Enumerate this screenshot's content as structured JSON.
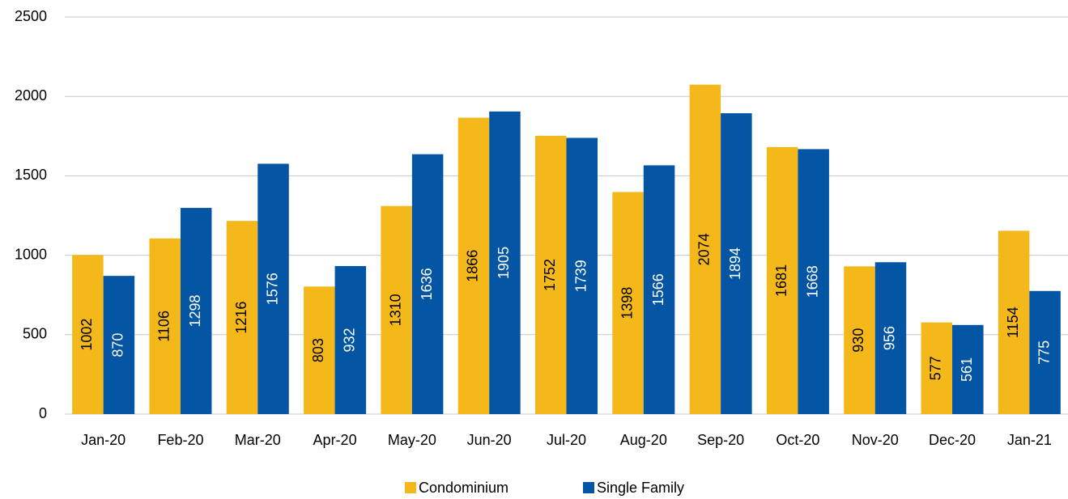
{
  "chart_data": {
    "type": "bar",
    "categories": [
      "Jan-20",
      "Feb-20",
      "Mar-20",
      "Apr-20",
      "May-20",
      "Jun-20",
      "Jul-20",
      "Aug-20",
      "Sep-20",
      "Oct-20",
      "Nov-20",
      "Dec-20",
      "Jan-21"
    ],
    "series": [
      {
        "name": "Condominium",
        "color": "#f4b81a",
        "values": [
          1002,
          1106,
          1216,
          803,
          1310,
          1866,
          1752,
          1398,
          2074,
          1681,
          930,
          577,
          1154
        ]
      },
      {
        "name": "Single Family",
        "color": "#0455a4",
        "values": [
          870,
          1298,
          1576,
          932,
          1636,
          1905,
          1739,
          1566,
          1894,
          1668,
          956,
          561,
          775
        ]
      }
    ],
    "ylim": [
      0,
      2500
    ],
    "yticks": [
      0,
      500,
      1000,
      1500,
      2000,
      2500
    ],
    "grid": true,
    "legend": "bottom"
  }
}
